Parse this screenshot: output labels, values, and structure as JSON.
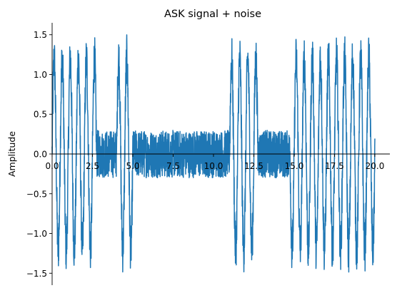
{
  "chart_data": {
    "type": "line",
    "title": "ASK signal + noise",
    "xlabel": "",
    "ylabel": "Amplitude",
    "xlim": [
      0.0,
      20.0
    ],
    "ylim": [
      -1.65,
      1.65
    ],
    "x_ticks": [
      "0.0",
      "2.5",
      "5.0",
      "7.5",
      "10.0",
      "12.5",
      "15.0",
      "17.5",
      "20.0"
    ],
    "x_tick_values": [
      0.0,
      2.5,
      5.0,
      7.5,
      10.0,
      12.5,
      15.0,
      17.5,
      20.0
    ],
    "y_ticks": [
      "1.5",
      "1.0",
      "0.5",
      "0.0",
      "−0.5",
      "−1.0",
      "−1.5"
    ],
    "y_tick_values": [
      1.5,
      1.0,
      0.5,
      0.0,
      -0.5,
      -1.0,
      -1.5
    ],
    "spines": "centered-zero",
    "grid": false,
    "series": [
      {
        "color": "#1f77b4",
        "carrier_cycles_per_unit": 2,
        "noise_amplitude": 0.3,
        "segments": [
          {
            "x_start": 0.0,
            "x_end": 2.75,
            "amplitude": 1.2
          },
          {
            "x_start": 2.75,
            "x_end": 4.0,
            "amplitude": 0.0
          },
          {
            "x_start": 4.0,
            "x_end": 5.0,
            "amplitude": 1.2
          },
          {
            "x_start": 5.0,
            "x_end": 11.0,
            "amplitude": 0.0
          },
          {
            "x_start": 11.0,
            "x_end": 12.75,
            "amplitude": 1.2
          },
          {
            "x_start": 12.75,
            "x_end": 14.75,
            "amplitude": 0.0
          },
          {
            "x_start": 14.75,
            "x_end": 20.0,
            "amplitude": 1.2
          }
        ]
      }
    ]
  }
}
